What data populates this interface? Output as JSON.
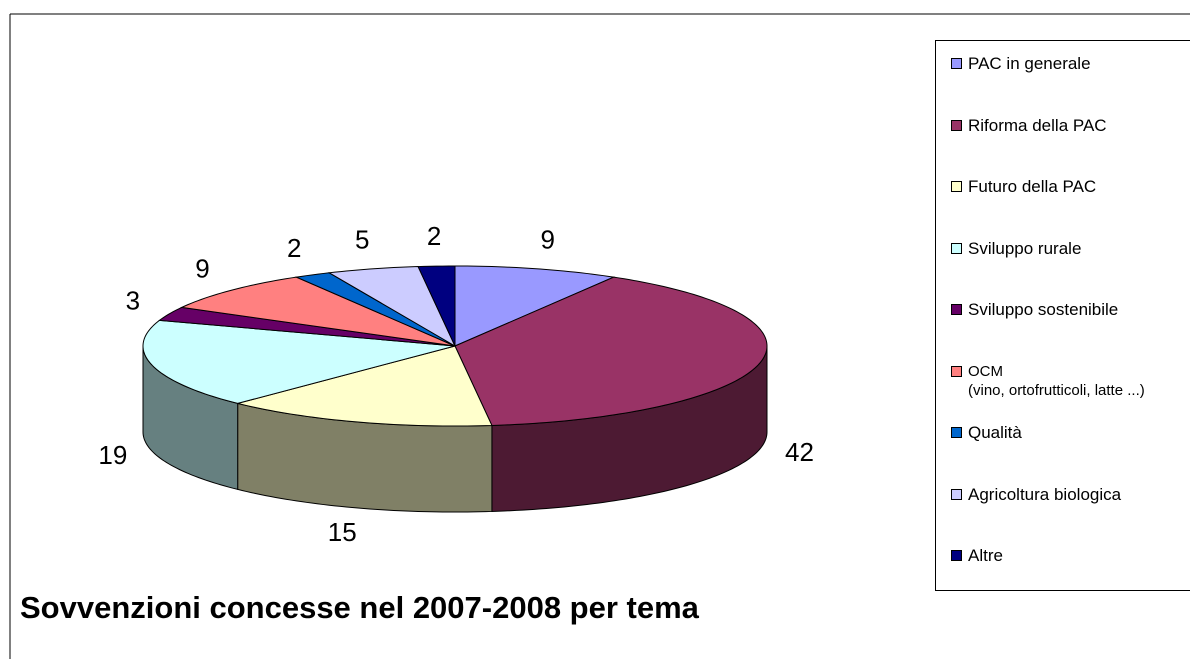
{
  "chart_data": {
    "type": "pie",
    "title": "Sovvenzioni concesse nel 2007-2008 per tema",
    "categories": [
      "PAC in generale",
      "Riforma della PAC",
      "Futuro della PAC",
      "Sviluppo rurale",
      "Sviluppo sostenibile",
      "OCM\n(vino, ortofrutticoli, latte ...)",
      "Qualità",
      "Agricoltura biologica",
      "Altre"
    ],
    "values": [
      9,
      42,
      15,
      19,
      3,
      9,
      2,
      5,
      2
    ],
    "colors": [
      "#9999ff",
      "#993366",
      "#ffffcc",
      "#ccffff",
      "#660066",
      "#ff8080",
      "#0066cc",
      "#ccccff",
      "#000080"
    ],
    "legend": "right"
  }
}
